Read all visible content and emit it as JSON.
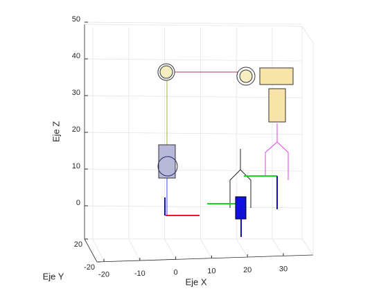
{
  "chart_data": {
    "type": "plot3d",
    "xlabel": "Eje X",
    "ylabel": "Eje Y",
    "zlabel": "Eje Z",
    "xlim": [
      -20,
      30
    ],
    "xticks": [
      -20,
      -10,
      0,
      10,
      20,
      30
    ],
    "ylim": [
      -20,
      20
    ],
    "yticks": [
      20,
      -20
    ],
    "zlim": [
      0,
      50
    ],
    "zticks": [
      0,
      10,
      20,
      30,
      40,
      50
    ],
    "grid": true
  }
}
